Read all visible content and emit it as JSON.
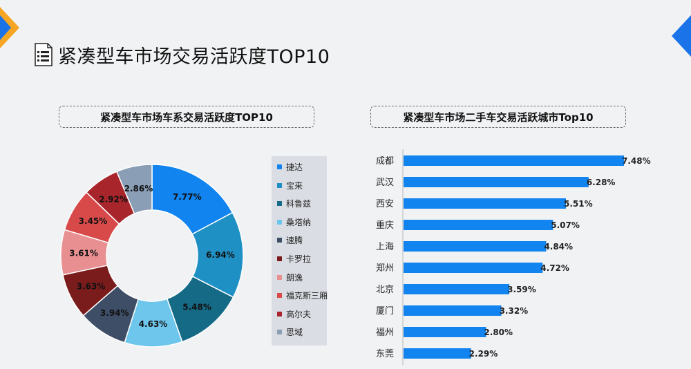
{
  "page": {
    "title": "紧凑型车市场交易活跃度TOP10",
    "icon": "document-list-icon",
    "accent_colors": {
      "orange": "#f6a623",
      "blue": "#1a73e8"
    }
  },
  "chart_data": [
    {
      "type": "pie",
      "title": "紧凑型车市场车系交易活跃度TOP10",
      "donut": true,
      "legend_position": "right",
      "categories": [
        "捷达",
        "宝来",
        "科鲁兹",
        "桑塔纳",
        "速腾",
        "卡罗拉",
        "朗逸",
        "福克斯三厢",
        "高尔夫",
        "思域"
      ],
      "values": [
        7.77,
        6.94,
        5.48,
        4.63,
        3.94,
        3.63,
        3.61,
        3.45,
        2.92,
        2.86
      ],
      "labels": [
        "7.77%",
        "6.94%",
        "5.48%",
        "4.63%",
        "3.94%",
        "3.63%",
        "3.61%",
        "3.45%",
        "2.92%",
        "2.86%"
      ],
      "colors": [
        "#1184f0",
        "#1f90c4",
        "#156a86",
        "#6ec6ec",
        "#3e4e66",
        "#7b1c1c",
        "#e88f92",
        "#d84a4a",
        "#a8262b",
        "#8a9eb6"
      ]
    },
    {
      "type": "bar",
      "orientation": "horizontal",
      "title": "紧凑型车市场二手车交易活跃城市Top10",
      "categories": [
        "成都",
        "武汉",
        "西安",
        "重庆",
        "上海",
        "郑州",
        "北京",
        "厦门",
        "福州",
        "东莞"
      ],
      "values": [
        7.48,
        6.28,
        5.51,
        5.07,
        4.84,
        4.72,
        3.59,
        3.32,
        2.8,
        2.29
      ],
      "labels": [
        "7.48%",
        "6.28%",
        "5.51%",
        "5.07%",
        "4.84%",
        "4.72%",
        "3.59%",
        "3.32%",
        "2.80%",
        "2.29%"
      ],
      "color": "#1184f0",
      "grid": false
    }
  ]
}
